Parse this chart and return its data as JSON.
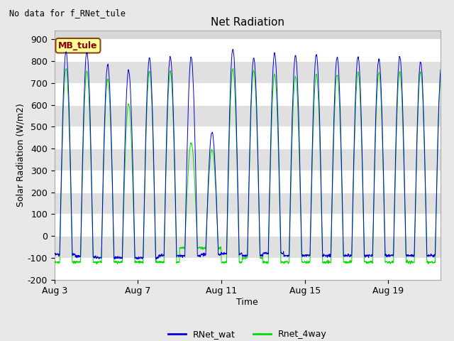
{
  "title": "Net Radiation",
  "xlabel": "Time",
  "ylabel": "Solar Radiation (W/m2)",
  "top_left_text": "No data for f_RNet_tule",
  "legend_label_text": "MB_tule",
  "legend_entries": [
    "RNet_wat",
    "Rnet_4way"
  ],
  "legend_colors": [
    "#0000dd",
    "#00dd00"
  ],
  "ylim": [
    -200,
    940
  ],
  "yticks": [
    -200,
    -100,
    0,
    100,
    200,
    300,
    400,
    500,
    600,
    700,
    800,
    900
  ],
  "xtick_labels": [
    "Aug 3",
    "Aug 7",
    "Aug 11",
    "Aug 15",
    "Aug 19"
  ],
  "background_color": "#e8e8e8",
  "plot_bg_color": "#d8d8d8",
  "grid_color": "#ffffff",
  "stripe_color": "#e0e0e0",
  "num_days": 19,
  "peak_blue": [
    845,
    840,
    785,
    760,
    815,
    820,
    820,
    475,
    855,
    815,
    835,
    825,
    830,
    820,
    820,
    810,
    820,
    795,
    780
  ],
  "peak_green": [
    765,
    755,
    715,
    605,
    755,
    755,
    425,
    395,
    765,
    755,
    740,
    730,
    740,
    740,
    750,
    750,
    750,
    750,
    760
  ],
  "night_blue": [
    -85,
    -95,
    -100,
    -100,
    -100,
    -90,
    -90,
    -85,
    -80,
    -90,
    -80,
    -90,
    -90,
    -90,
    -90,
    -90,
    -90,
    -90,
    -90
  ],
  "night_green": [
    -120,
    -120,
    -120,
    -120,
    -120,
    -120,
    -55,
    -55,
    -120,
    -100,
    -120,
    -120,
    -120,
    -120,
    -120,
    -120,
    -120,
    -120,
    -120
  ],
  "day_start": 6.0,
  "day_end": 20.5,
  "samples_per_hour": 4,
  "line_width": 0.7,
  "title_fontsize": 11,
  "axis_fontsize": 9,
  "tick_fontsize": 9
}
